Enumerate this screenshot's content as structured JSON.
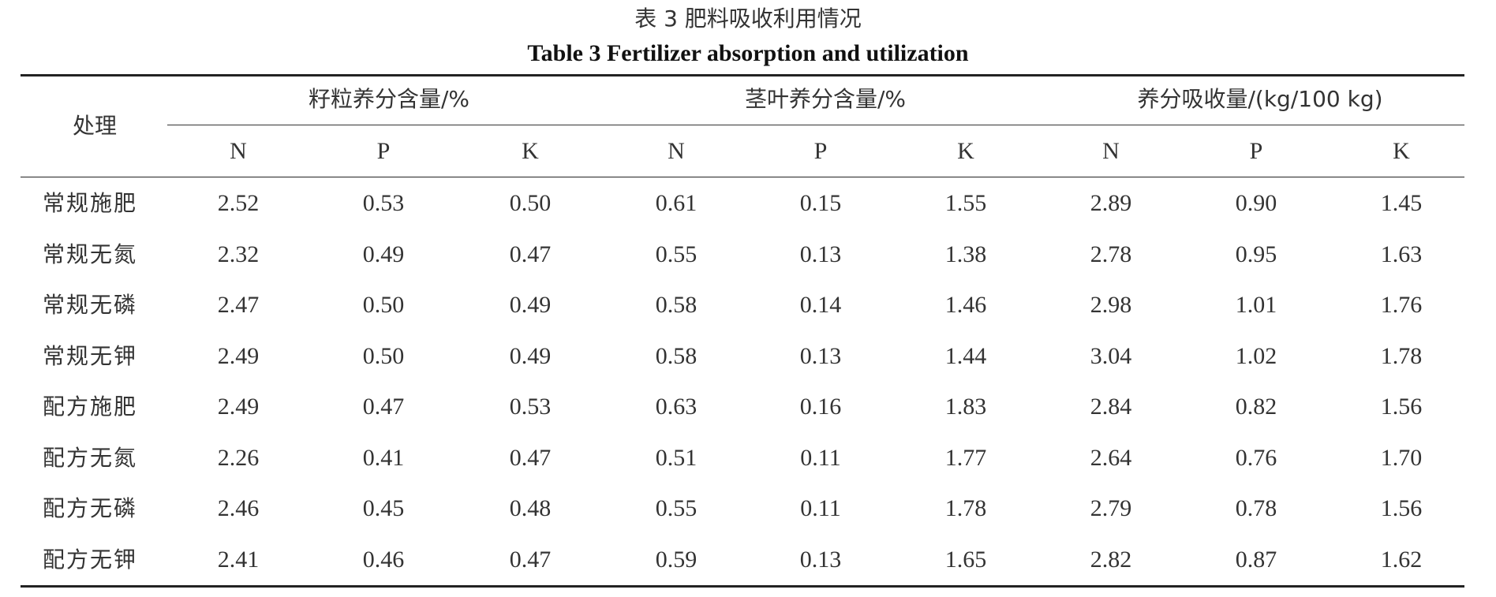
{
  "caption": {
    "cn": "表 3   肥料吸收利用情况",
    "en": "Table 3    Fertilizer absorption and utilization"
  },
  "table": {
    "corner_header": "处理",
    "groups": [
      {
        "label": "籽粒养分含量/%",
        "subcolumns": [
          "N",
          "P",
          "K"
        ]
      },
      {
        "label": "茎叶养分含量/%",
        "subcolumns": [
          "N",
          "P",
          "K"
        ]
      },
      {
        "label": "养分吸收量/(kg/100 kg)",
        "subcolumns": [
          "N",
          "P",
          "K"
        ]
      }
    ],
    "rows": [
      {
        "label": "常规施肥",
        "values": [
          "2.52",
          "0.53",
          "0.50",
          "0.61",
          "0.15",
          "1.55",
          "2.89",
          "0.90",
          "1.45"
        ]
      },
      {
        "label": "常规无氮",
        "values": [
          "2.32",
          "0.49",
          "0.47",
          "0.55",
          "0.13",
          "1.38",
          "2.78",
          "0.95",
          "1.63"
        ]
      },
      {
        "label": "常规无磷",
        "values": [
          "2.47",
          "0.50",
          "0.49",
          "0.58",
          "0.14",
          "1.46",
          "2.98",
          "1.01",
          "1.76"
        ]
      },
      {
        "label": "常规无钾",
        "values": [
          "2.49",
          "0.50",
          "0.49",
          "0.58",
          "0.13",
          "1.44",
          "3.04",
          "1.02",
          "1.78"
        ]
      },
      {
        "label": "配方施肥",
        "values": [
          "2.49",
          "0.47",
          "0.53",
          "0.63",
          "0.16",
          "1.83",
          "2.84",
          "0.82",
          "1.56"
        ]
      },
      {
        "label": "配方无氮",
        "values": [
          "2.26",
          "0.41",
          "0.47",
          "0.51",
          "0.11",
          "1.77",
          "2.64",
          "0.76",
          "1.70"
        ]
      },
      {
        "label": "配方无磷",
        "values": [
          "2.46",
          "0.45",
          "0.48",
          "0.55",
          "0.11",
          "1.78",
          "2.79",
          "0.78",
          "1.56"
        ]
      },
      {
        "label": "配方无钾",
        "values": [
          "2.41",
          "0.46",
          "0.47",
          "0.59",
          "0.13",
          "1.65",
          "2.82",
          "0.87",
          "1.62"
        ]
      }
    ]
  }
}
